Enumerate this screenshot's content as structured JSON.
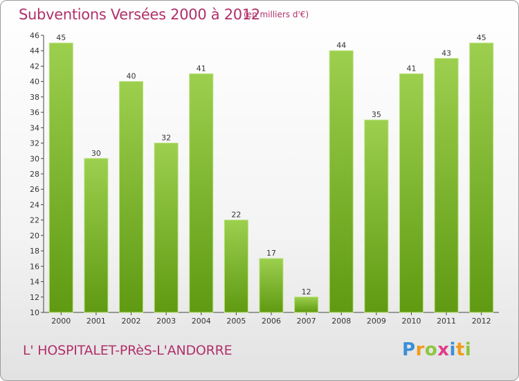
{
  "header": {
    "title": "Subventions Versées 2000 à 2012",
    "subtitle": "(en milliers d'€)"
  },
  "footer": {
    "town": "L' HOSPITALET-PRèS-L'ANDORRE",
    "logo_text": "Proxiti"
  },
  "colors": {
    "bar_top": "#9ccf4e",
    "bar_bottom": "#5f9a12",
    "title": "#b0306a",
    "logo_letters": [
      "#3b8fd6",
      "#f29a1a",
      "#8cc63f",
      "#e23b8a",
      "#3b8fd6",
      "#f29a1a",
      "#8cc63f"
    ]
  },
  "chart_data": {
    "type": "bar",
    "title": "Subventions Versées 2000 à 2012",
    "categories": [
      "2000",
      "2001",
      "2002",
      "2003",
      "2004",
      "2005",
      "2006",
      "2007",
      "2008",
      "2009",
      "2010",
      "2011",
      "2012"
    ],
    "values": [
      45,
      30,
      40,
      32,
      41,
      22,
      17,
      12,
      44,
      35,
      41,
      43,
      45
    ],
    "xlabel": "",
    "ylabel": "",
    "ylim": [
      10,
      46
    ],
    "yticks": [
      10,
      12,
      14,
      16,
      18,
      20,
      22,
      24,
      26,
      28,
      30,
      32,
      34,
      36,
      38,
      40,
      42,
      44,
      46
    ],
    "grid": false,
    "legend": "none",
    "data_labels": true
  }
}
